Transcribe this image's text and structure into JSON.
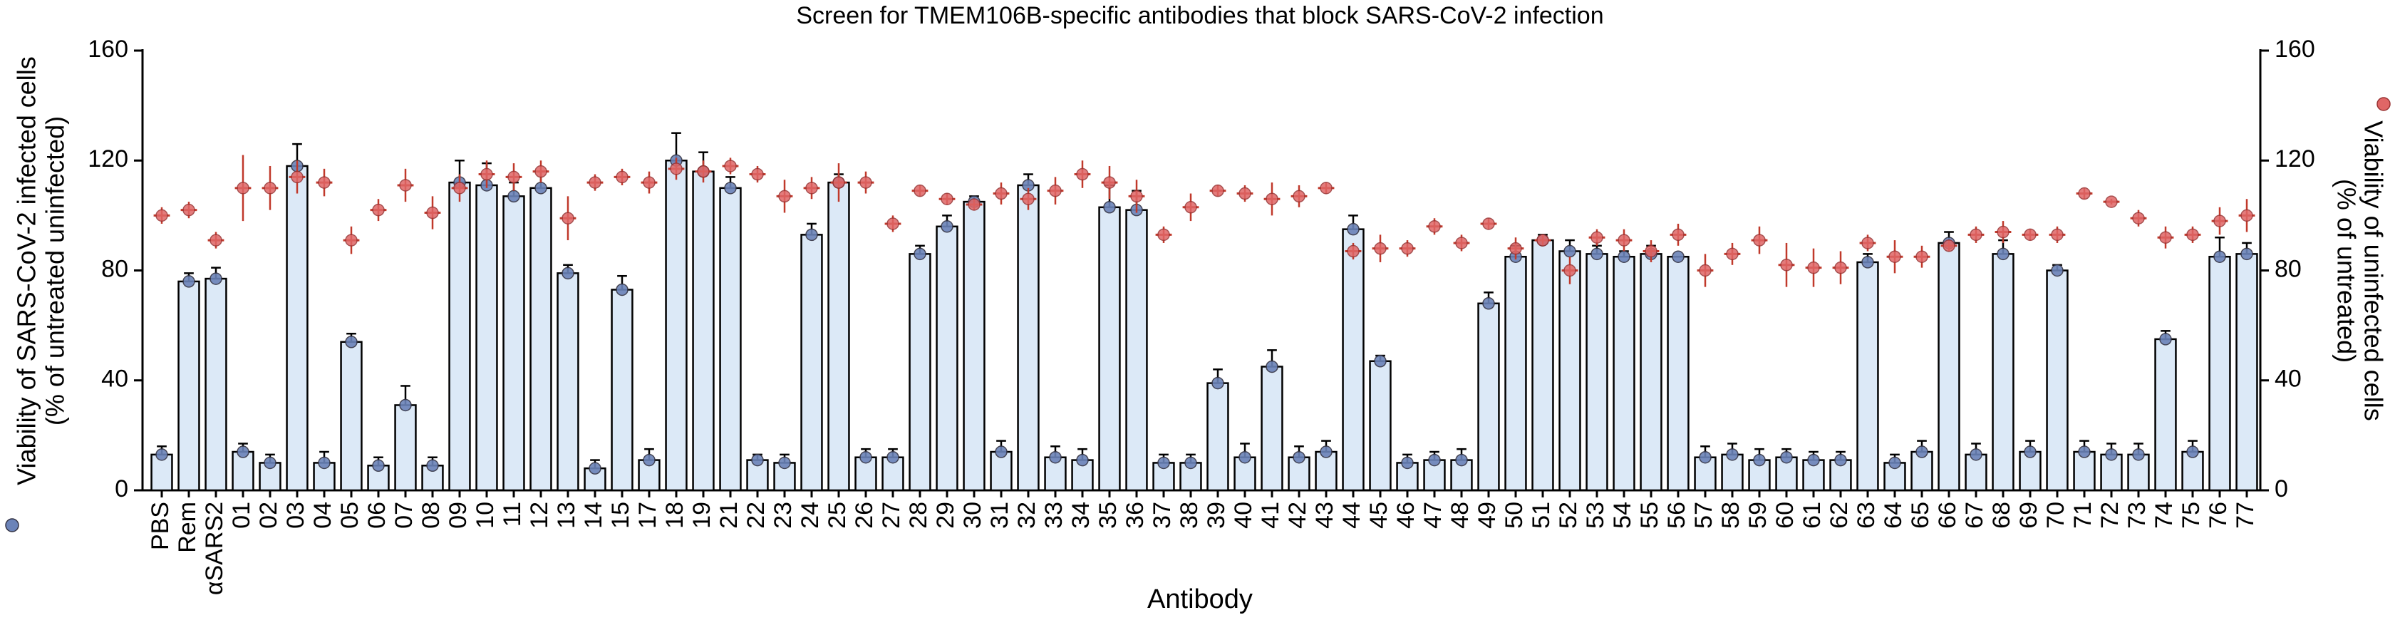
{
  "chart_data": {
    "type": "bar",
    "title": "Screen for TMEM106B-specific antibodies that block SARS-CoV-2 infection",
    "xlabel": "Antibody",
    "ylabel": [
      "Viability of SARS-CoV-2 infected cells",
      "(% of untreated uninfected)"
    ],
    "y2label": [
      "Viability of uninfected cells",
      "(% of untreated)"
    ],
    "categories": [
      "PBS",
      "Rem",
      "αSARS2",
      "01",
      "02",
      "03",
      "04",
      "05",
      "06",
      "07",
      "08",
      "09",
      "10",
      "11",
      "12",
      "13",
      "14",
      "15",
      "17",
      "18",
      "19",
      "21",
      "22",
      "23",
      "24",
      "25",
      "26",
      "27",
      "28",
      "29",
      "30",
      "31",
      "32",
      "33",
      "34",
      "35",
      "36",
      "37",
      "38",
      "39",
      "40",
      "41",
      "42",
      "43",
      "44",
      "45",
      "46",
      "47",
      "48",
      "49",
      "50",
      "51",
      "52",
      "53",
      "54",
      "55",
      "56",
      "57",
      "58",
      "59",
      "60",
      "61",
      "62",
      "63",
      "64",
      "65",
      "66",
      "67",
      "68",
      "69",
      "70",
      "71",
      "72",
      "73",
      "74",
      "75",
      "76",
      "77"
    ],
    "series": [
      {
        "color": "#dce9f7",
        "values": [
          13,
          76,
          77,
          14,
          10,
          118,
          10,
          54,
          9,
          31,
          9,
          112,
          111,
          107,
          110,
          79,
          8,
          73,
          11,
          120,
          116,
          110,
          11,
          10,
          93,
          112,
          12,
          12,
          86,
          96,
          105,
          14,
          111,
          12,
          11,
          103,
          102,
          10,
          10,
          39,
          12,
          45,
          12,
          14,
          95,
          47,
          10,
          11,
          11,
          68,
          85,
          91,
          87,
          86,
          85,
          86,
          85,
          12,
          13,
          11,
          12,
          11,
          11,
          83,
          10,
          14,
          90,
          13,
          86,
          14,
          80,
          14,
          13,
          13,
          55,
          14,
          85,
          86
        ],
        "errors": [
          3,
          3,
          4,
          3,
          3,
          8,
          4,
          3,
          3,
          7,
          3,
          8,
          8,
          5,
          6,
          3,
          3,
          5,
          4,
          10,
          7,
          4,
          2,
          3,
          4,
          3,
          3,
          3,
          3,
          4,
          2,
          4,
          4,
          4,
          4,
          8,
          7,
          3,
          3,
          5,
          5,
          6,
          4,
          4,
          5,
          2,
          3,
          3,
          4,
          4,
          4,
          2,
          4,
          3,
          2,
          3,
          0,
          4,
          4,
          4,
          3,
          3,
          3,
          3,
          3,
          4,
          4,
          4,
          5,
          4,
          2,
          4,
          4,
          4,
          3,
          4,
          7,
          4
        ]
      },
      {
        "color": "#e06666",
        "axis": "y2",
        "values": [
          100,
          102,
          91,
          110,
          110,
          114,
          112,
          91,
          102,
          111,
          101,
          110,
          115,
          114,
          116,
          99,
          112,
          114,
          112,
          117,
          116,
          118,
          115,
          107,
          110,
          112,
          112,
          97,
          109,
          106,
          104,
          108,
          106,
          109,
          115,
          112,
          107,
          93,
          103,
          109,
          108,
          106,
          107,
          110,
          87,
          88,
          88,
          96,
          90,
          97,
          88,
          91,
          80,
          92,
          91,
          87,
          93,
          80,
          86,
          91,
          82,
          81,
          81,
          90,
          85,
          85,
          89,
          93,
          94,
          93,
          93,
          108,
          105,
          99,
          92,
          93,
          98,
          100
        ],
        "errors": [
          3,
          3,
          3,
          12,
          8,
          6,
          5,
          5,
          4,
          6,
          6,
          5,
          5,
          5,
          4,
          8,
          3,
          3,
          4,
          4,
          4,
          3,
          3,
          6,
          4,
          7,
          4,
          3,
          2,
          2,
          2,
          4,
          4,
          5,
          5,
          6,
          6,
          3,
          5,
          2,
          3,
          6,
          4,
          2,
          3,
          5,
          3,
          3,
          3,
          2,
          4,
          2,
          5,
          3,
          4,
          4,
          4,
          6,
          4,
          5,
          8,
          7,
          6,
          3,
          6,
          4,
          2,
          3,
          4,
          2,
          3,
          2,
          1,
          3,
          4,
          3,
          5,
          6
        ]
      }
    ],
    "ylim": [
      0,
      160
    ],
    "yticks": [
      0,
      40,
      80,
      120,
      160
    ],
    "y2lim": [
      0,
      160
    ],
    "y2ticks": [
      0,
      40,
      80,
      120,
      160
    ]
  }
}
